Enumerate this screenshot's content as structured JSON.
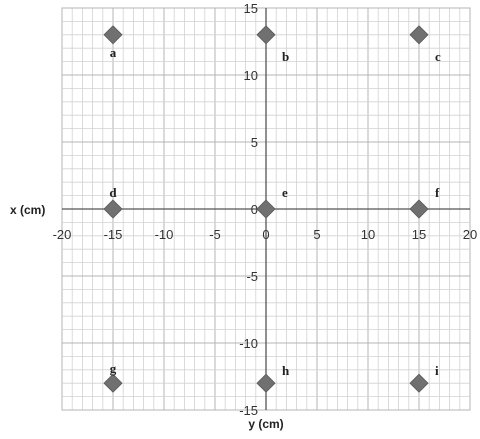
{
  "chart_data": {
    "type": "scatter",
    "title": "",
    "xlabel": "y (cm)",
    "ylabel": "x (cm)",
    "xlim": [
      -20,
      20
    ],
    "ylim": [
      -15,
      15
    ],
    "x_ticks": [
      -20,
      -15,
      -10,
      -5,
      0,
      5,
      10,
      15,
      20
    ],
    "y_ticks": [
      -15,
      -10,
      -5,
      0,
      5,
      10,
      15
    ],
    "grid": true,
    "grid_minor_step": 1,
    "marker": "diamond",
    "marker_color": "#707070",
    "points": [
      {
        "label": "a",
        "x": -15,
        "y": 13
      },
      {
        "label": "b",
        "x": 0,
        "y": 13
      },
      {
        "label": "c",
        "x": 15,
        "y": 13
      },
      {
        "label": "d",
        "x": -15,
        "y": 0
      },
      {
        "label": "e",
        "x": 0,
        "y": 0
      },
      {
        "label": "f",
        "x": 15,
        "y": 0
      },
      {
        "label": "g",
        "x": -15,
        "y": -13
      },
      {
        "label": "h",
        "x": 0,
        "y": -13
      },
      {
        "label": "i",
        "x": 15,
        "y": -13
      }
    ]
  }
}
